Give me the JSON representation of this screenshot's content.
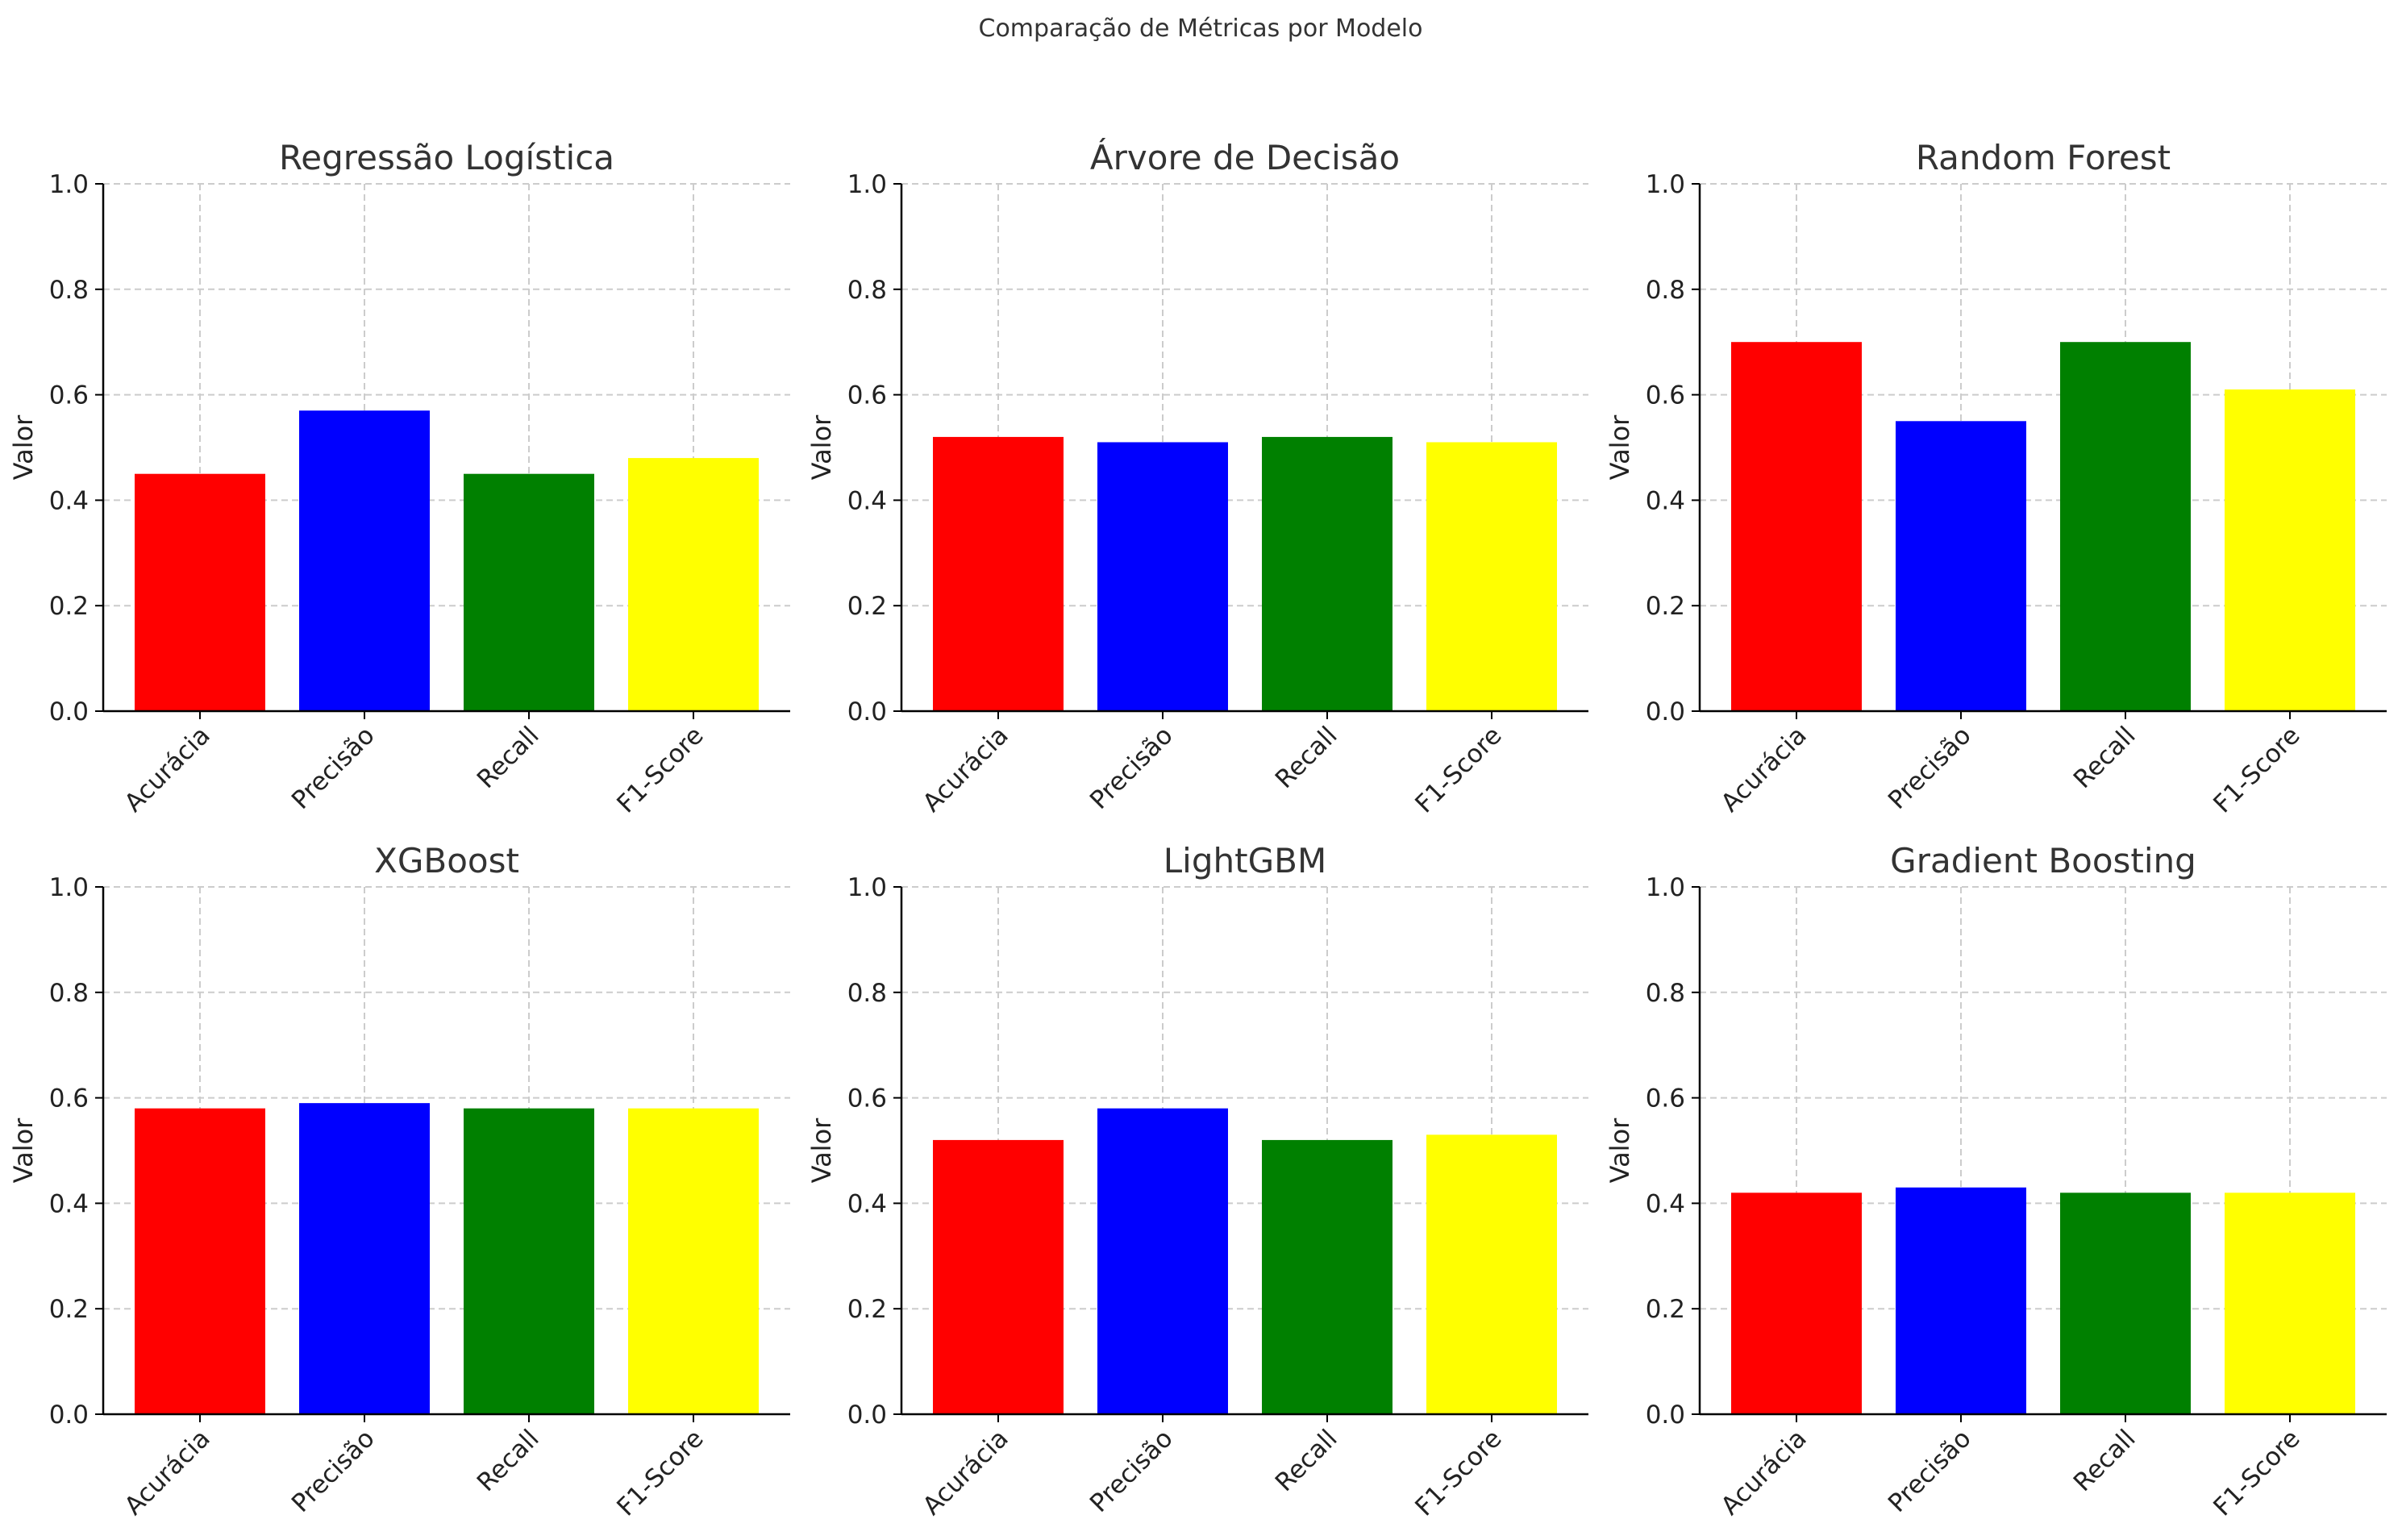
{
  "figure": {
    "title": "Comparação de Métricas por Modelo"
  },
  "chart_data": [
    {
      "type": "bar",
      "title": "Regressão Logística",
      "ylabel": "Valor",
      "categories": [
        "Acurácia",
        "Precisão",
        "Recall",
        "F1-Score"
      ],
      "values": [
        0.45,
        0.57,
        0.45,
        0.48
      ],
      "colors": [
        "#ff0000",
        "#0000ff",
        "#008000",
        "#ffff00"
      ],
      "ylim": [
        0,
        1.0
      ],
      "yticks": [
        "0.0",
        "0.2",
        "0.4",
        "0.6",
        "0.8",
        "1.0"
      ],
      "grid": true
    },
    {
      "type": "bar",
      "title": "Árvore de Decisão",
      "ylabel": "Valor",
      "categories": [
        "Acurácia",
        "Precisão",
        "Recall",
        "F1-Score"
      ],
      "values": [
        0.52,
        0.51,
        0.52,
        0.51
      ],
      "colors": [
        "#ff0000",
        "#0000ff",
        "#008000",
        "#ffff00"
      ],
      "ylim": [
        0,
        1.0
      ],
      "yticks": [
        "0.0",
        "0.2",
        "0.4",
        "0.6",
        "0.8",
        "1.0"
      ],
      "grid": true
    },
    {
      "type": "bar",
      "title": "Random Forest",
      "ylabel": "Valor",
      "categories": [
        "Acurácia",
        "Precisão",
        "Recall",
        "F1-Score"
      ],
      "values": [
        0.7,
        0.55,
        0.7,
        0.61
      ],
      "colors": [
        "#ff0000",
        "#0000ff",
        "#008000",
        "#ffff00"
      ],
      "ylim": [
        0,
        1.0
      ],
      "yticks": [
        "0.0",
        "0.2",
        "0.4",
        "0.6",
        "0.8",
        "1.0"
      ],
      "grid": true
    },
    {
      "type": "bar",
      "title": "XGBoost",
      "ylabel": "Valor",
      "categories": [
        "Acurácia",
        "Precisão",
        "Recall",
        "F1-Score"
      ],
      "values": [
        0.58,
        0.59,
        0.58,
        0.58
      ],
      "colors": [
        "#ff0000",
        "#0000ff",
        "#008000",
        "#ffff00"
      ],
      "ylim": [
        0,
        1.0
      ],
      "yticks": [
        "0.0",
        "0.2",
        "0.4",
        "0.6",
        "0.8",
        "1.0"
      ],
      "grid": true
    },
    {
      "type": "bar",
      "title": "LightGBM",
      "ylabel": "Valor",
      "categories": [
        "Acurácia",
        "Precisão",
        "Recall",
        "F1-Score"
      ],
      "values": [
        0.52,
        0.58,
        0.52,
        0.53
      ],
      "colors": [
        "#ff0000",
        "#0000ff",
        "#008000",
        "#ffff00"
      ],
      "ylim": [
        0,
        1.0
      ],
      "yticks": [
        "0.0",
        "0.2",
        "0.4",
        "0.6",
        "0.8",
        "1.0"
      ],
      "grid": true
    },
    {
      "type": "bar",
      "title": "Gradient Boosting",
      "ylabel": "Valor",
      "categories": [
        "Acurácia",
        "Precisão",
        "Recall",
        "F1-Score"
      ],
      "values": [
        0.42,
        0.43,
        0.42,
        0.42
      ],
      "colors": [
        "#ff0000",
        "#0000ff",
        "#008000",
        "#ffff00"
      ],
      "ylim": [
        0,
        1.0
      ],
      "yticks": [
        "0.0",
        "0.2",
        "0.4",
        "0.6",
        "0.8",
        "1.0"
      ],
      "grid": true
    }
  ]
}
